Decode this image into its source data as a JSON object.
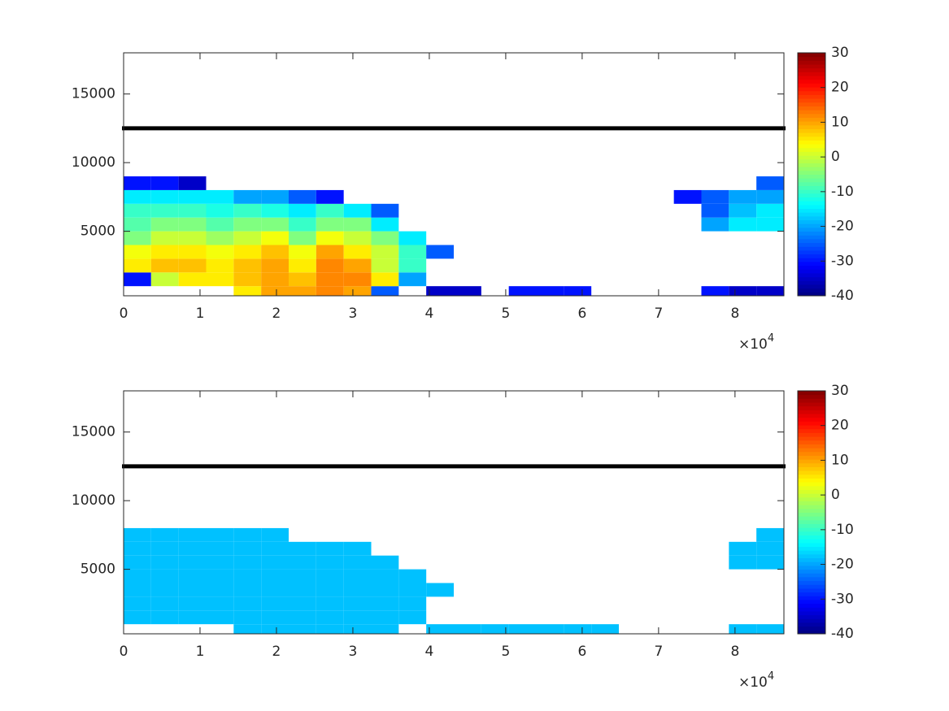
{
  "chart_data": [
    {
      "type": "heatmap",
      "xlim": [
        0,
        86400
      ],
      "ylim": [
        300,
        18000
      ],
      "xticks": [
        {
          "value": 0,
          "label": "0"
        },
        {
          "value": 10000,
          "label": "1"
        },
        {
          "value": 20000,
          "label": "2"
        },
        {
          "value": 30000,
          "label": "3"
        },
        {
          "value": 40000,
          "label": "4"
        },
        {
          "value": 50000,
          "label": "5"
        },
        {
          "value": 60000,
          "label": "6"
        },
        {
          "value": 70000,
          "label": "7"
        },
        {
          "value": 80000,
          "label": "8"
        }
      ],
      "x_multiplier": {
        "base": "×10",
        "power": "4"
      },
      "yticks": [
        5000,
        10000,
        15000
      ],
      "clim": [
        -40,
        30
      ],
      "cticks": [
        -40,
        -30,
        -20,
        -10,
        0,
        10,
        20,
        30
      ],
      "colormap": "jet",
      "ref_line": 12500,
      "ref_line_color": "#000000",
      "x_edges": [
        0,
        3600,
        7200,
        10800,
        14400,
        18000,
        21600,
        25200,
        28800,
        32400,
        36000,
        39600,
        43200,
        46800,
        50400,
        54000,
        57600,
        61200,
        64800,
        68400,
        72000,
        75600,
        79200,
        82800,
        86400
      ],
      "y_edges": [
        300,
        1000,
        2000,
        3000,
        4000,
        5000,
        6000,
        7000,
        8000,
        9000
      ],
      "values": [
        [
          null,
          null,
          null,
          null,
          5,
          10,
          10,
          12,
          10,
          -25,
          null,
          -35,
          -35,
          null,
          -30,
          -30,
          -30,
          null,
          null,
          null,
          null,
          -30,
          -35,
          -35
        ],
        [
          -30,
          0,
          5,
          5,
          8,
          10,
          8,
          12,
          12,
          5,
          -20,
          null,
          null,
          null,
          null,
          null,
          null,
          null,
          null,
          null,
          null,
          null,
          null,
          null
        ],
        [
          5,
          8,
          8,
          5,
          8,
          10,
          5,
          12,
          10,
          0,
          -10,
          null,
          null,
          null,
          null,
          null,
          null,
          null,
          null,
          null,
          null,
          null,
          null,
          null
        ],
        [
          3,
          5,
          5,
          3,
          5,
          8,
          3,
          10,
          5,
          0,
          -10,
          -25,
          null,
          null,
          null,
          null,
          null,
          null,
          null,
          null,
          null,
          null,
          null,
          null
        ],
        [
          -5,
          0,
          0,
          -3,
          0,
          3,
          -5,
          3,
          0,
          -5,
          -15,
          null,
          null,
          null,
          null,
          null,
          null,
          null,
          null,
          null,
          null,
          null,
          null,
          null
        ],
        [
          -8,
          -5,
          -5,
          -8,
          -5,
          -5,
          -10,
          -5,
          -5,
          -15,
          null,
          null,
          null,
          null,
          null,
          null,
          null,
          null,
          null,
          null,
          null,
          -20,
          -15,
          -15
        ],
        [
          -10,
          -10,
          -10,
          -12,
          -10,
          -12,
          -15,
          -10,
          -15,
          -25,
          null,
          null,
          null,
          null,
          null,
          null,
          null,
          null,
          null,
          null,
          null,
          -25,
          -18,
          -15
        ],
        [
          -15,
          -15,
          -15,
          -15,
          -20,
          -20,
          -25,
          -30,
          null,
          null,
          null,
          null,
          null,
          null,
          null,
          null,
          null,
          null,
          null,
          null,
          -30,
          -25,
          -20,
          -20
        ],
        [
          -30,
          -30,
          -35,
          null,
          null,
          null,
          null,
          null,
          null,
          null,
          null,
          null,
          null,
          null,
          null,
          null,
          null,
          null,
          null,
          null,
          null,
          null,
          null,
          -25
        ]
      ]
    },
    {
      "type": "heatmap",
      "xlim": [
        0,
        86400
      ],
      "ylim": [
        300,
        18000
      ],
      "xticks": [
        {
          "value": 0,
          "label": "0"
        },
        {
          "value": 10000,
          "label": "1"
        },
        {
          "value": 20000,
          "label": "2"
        },
        {
          "value": 30000,
          "label": "3"
        },
        {
          "value": 40000,
          "label": "4"
        },
        {
          "value": 50000,
          "label": "5"
        },
        {
          "value": 60000,
          "label": "6"
        },
        {
          "value": 70000,
          "label": "7"
        },
        {
          "value": 80000,
          "label": "8"
        }
      ],
      "x_multiplier": {
        "base": "×10",
        "power": "4"
      },
      "yticks": [
        5000,
        10000,
        15000
      ],
      "clim": [
        -40,
        30
      ],
      "cticks": [
        -40,
        -30,
        -20,
        -10,
        0,
        10,
        20,
        30
      ],
      "colormap": "jet",
      "ref_line": 12500,
      "ref_line_color": "#000000",
      "x_edges": [
        0,
        3600,
        7200,
        10800,
        14400,
        18000,
        21600,
        25200,
        28800,
        32400,
        36000,
        39600,
        43200,
        46800,
        50400,
        54000,
        57600,
        61200,
        64800,
        68400,
        72000,
        75600,
        79200,
        82800,
        86400
      ],
      "y_edges": [
        300,
        1000,
        2000,
        3000,
        4000,
        5000,
        6000,
        7000,
        8000,
        9000
      ],
      "values": [
        [
          null,
          null,
          null,
          null,
          -18,
          -18,
          -18,
          -18,
          -18,
          -18,
          null,
          -18,
          -18,
          -18,
          -18,
          -18,
          -18,
          -18,
          null,
          null,
          null,
          null,
          -18,
          -18
        ],
        [
          -18,
          -18,
          -18,
          -18,
          -18,
          -18,
          -18,
          -18,
          -18,
          -18,
          -18,
          null,
          null,
          null,
          null,
          null,
          null,
          null,
          null,
          null,
          null,
          null,
          null,
          null
        ],
        [
          -18,
          -18,
          -18,
          -18,
          -18,
          -18,
          -18,
          -18,
          -18,
          -18,
          -18,
          null,
          null,
          null,
          null,
          null,
          null,
          null,
          null,
          null,
          null,
          null,
          null,
          null
        ],
        [
          -18,
          -18,
          -18,
          -18,
          -18,
          -18,
          -18,
          -18,
          -18,
          -18,
          -18,
          -18,
          null,
          null,
          null,
          null,
          null,
          null,
          null,
          null,
          null,
          null,
          null,
          null
        ],
        [
          -18,
          -18,
          -18,
          -18,
          -18,
          -18,
          -18,
          -18,
          -18,
          -18,
          -18,
          null,
          null,
          null,
          null,
          null,
          null,
          null,
          null,
          null,
          null,
          null,
          null,
          null
        ],
        [
          -18,
          -18,
          -18,
          -18,
          -18,
          -18,
          -18,
          -18,
          -18,
          -18,
          null,
          null,
          null,
          null,
          null,
          null,
          null,
          null,
          null,
          null,
          null,
          null,
          -18,
          -18
        ],
        [
          -18,
          -18,
          -18,
          -18,
          -18,
          -18,
          -18,
          -18,
          -18,
          null,
          null,
          null,
          null,
          null,
          null,
          null,
          null,
          null,
          null,
          null,
          null,
          null,
          -18,
          -18
        ],
        [
          -18,
          -18,
          -18,
          -18,
          -18,
          -18,
          null,
          null,
          null,
          null,
          null,
          null,
          null,
          null,
          null,
          null,
          null,
          null,
          null,
          null,
          null,
          null,
          null,
          -18
        ],
        [
          null,
          null,
          null,
          null,
          null,
          null,
          null,
          null,
          null,
          null,
          null,
          null,
          null,
          null,
          null,
          null,
          null,
          null,
          null,
          null,
          null,
          null,
          null,
          null
        ]
      ]
    }
  ]
}
